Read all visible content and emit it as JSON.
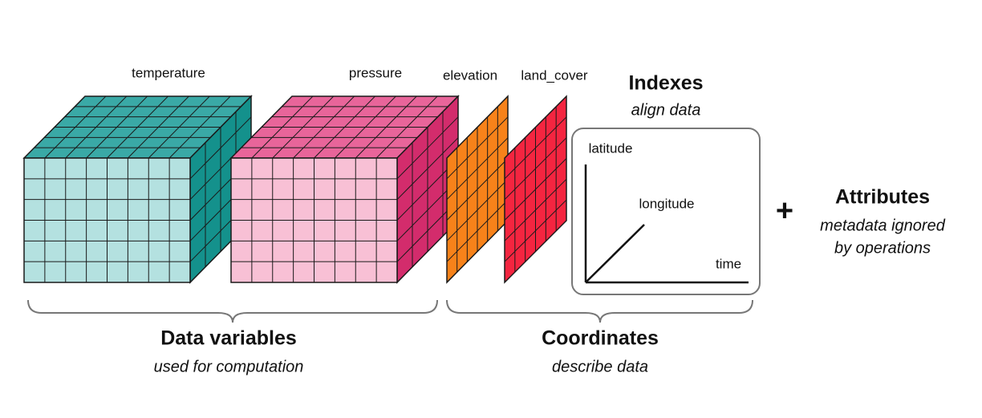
{
  "variables": [
    "temperature",
    "pressure"
  ],
  "coordinates": [
    "elevation",
    "land_cover"
  ],
  "indexes": {
    "title": "Indexes",
    "subtitle": "align data",
    "axes": [
      "latitude",
      "longitude",
      "time"
    ]
  },
  "plus": "+",
  "attributes": {
    "title": "Attributes",
    "lines": [
      "metadata ignored",
      "by operations"
    ]
  },
  "groups": [
    {
      "title": "Data variables",
      "subtitle": "used for computation"
    },
    {
      "title": "Coordinates",
      "subtitle": "describe data"
    }
  ]
}
